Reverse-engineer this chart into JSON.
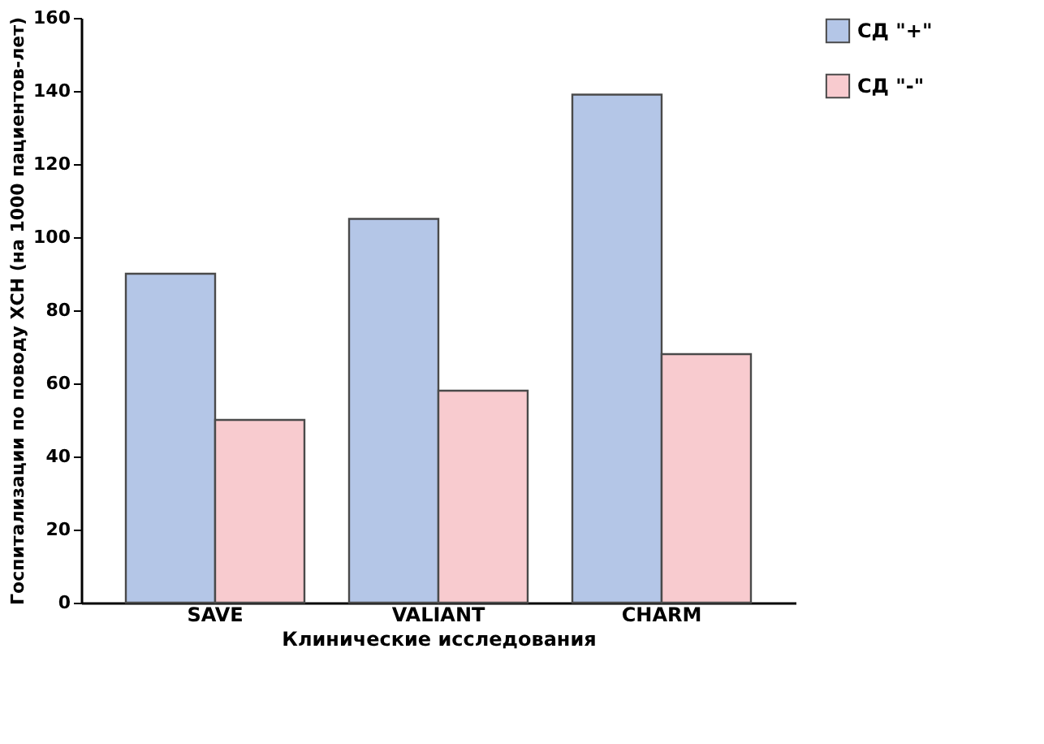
{
  "chart_data": {
    "type": "bar",
    "xlabel": "Клинические исследования",
    "ylabel": "Госпитализации по поводу ХСН (на 1000 пациентов-лет)",
    "categories": [
      "SAVE",
      "VALIANT",
      "CHARM"
    ],
    "series": [
      {
        "name": "СД \"+\"",
        "color": "#b4c6e7",
        "values": [
          90,
          105,
          139
        ]
      },
      {
        "name": "СД \"-\"",
        "color": "#f8cbcf",
        "values": [
          50,
          58,
          68
        ]
      }
    ],
    "ylim": [
      0,
      160
    ],
    "yticks": [
      0,
      20,
      40,
      60,
      80,
      100,
      120,
      140,
      160
    ],
    "grid": false,
    "legend": "right"
  }
}
